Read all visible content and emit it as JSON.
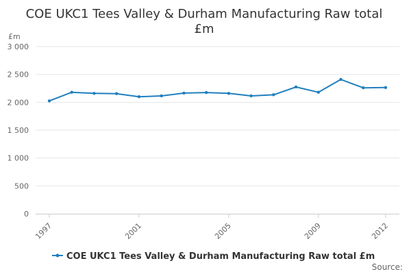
{
  "chart_data": {
    "type": "line",
    "title_lines": [
      "COE UKC1 Tees Valley & Durham Manufacturing Raw total",
      "£m"
    ],
    "ylabel": "£m",
    "ylim": [
      0,
      3000
    ],
    "yticks": [
      {
        "value": 0,
        "label": "0"
      },
      {
        "value": 500,
        "label": "500"
      },
      {
        "value": 1000,
        "label": "1 000"
      },
      {
        "value": 1500,
        "label": "1 500"
      },
      {
        "value": 2000,
        "label": "2 000"
      },
      {
        "value": 2500,
        "label": "2 500"
      },
      {
        "value": 3000,
        "label": "3 000"
      }
    ],
    "xlim": [
      1997,
      2012
    ],
    "xticks": [
      {
        "value": 1997,
        "label": "1997"
      },
      {
        "value": 2001,
        "label": "2001"
      },
      {
        "value": 2005,
        "label": "2005"
      },
      {
        "value": 2009,
        "label": "2009"
      },
      {
        "value": 2012,
        "label": "2012"
      }
    ],
    "grid": true,
    "legend_position": "bottom",
    "series": [
      {
        "name": "COE UKC1 Tees Valley & Durham Manufacturing Raw total £m",
        "color": "#1f7fbf",
        "x": [
          1997,
          1998,
          1999,
          2000,
          2001,
          2002,
          2003,
          2004,
          2005,
          2006,
          2007,
          2008,
          2009,
          2010,
          2011,
          2012
        ],
        "values": [
          2025,
          2180,
          2160,
          2155,
          2100,
          2115,
          2165,
          2175,
          2160,
          2115,
          2135,
          2275,
          2180,
          2410,
          2260,
          2265
        ]
      }
    ]
  },
  "source_label": "Source:"
}
